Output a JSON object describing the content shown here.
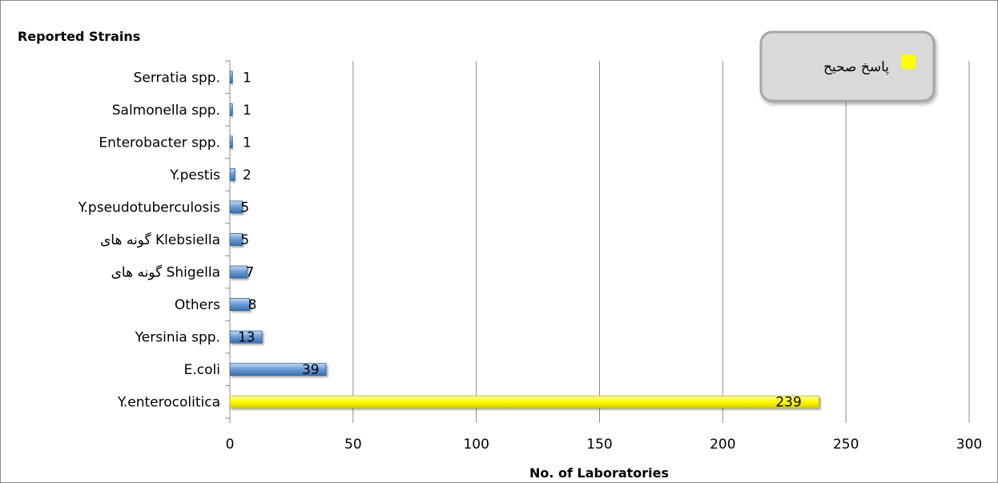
{
  "chart_data": {
    "type": "bar",
    "orientation": "horizontal",
    "title": "Reported Strains",
    "xlabel": "No. of Laboratories",
    "ylabel": "",
    "xlim": [
      0,
      300
    ],
    "xticks": [
      0,
      50,
      100,
      150,
      200,
      250,
      300
    ],
    "grid": "vertical",
    "legend_position": "top-right",
    "categories": [
      "Serratia spp.",
      "Salmonella spp.",
      "Enterobacter spp.",
      "Y.pestis",
      "Y.pseudotuberculosis",
      "گونه های Klebsiella",
      "گونه های Shigella",
      "Others",
      "Yersinia spp.",
      "E.coli",
      "Y.enterocolitica"
    ],
    "values": [
      1,
      1,
      1,
      2,
      5,
      5,
      7,
      8,
      13,
      39,
      239
    ],
    "highlight": [
      false,
      false,
      false,
      false,
      false,
      false,
      false,
      false,
      false,
      false,
      true
    ],
    "legend": [
      {
        "label": "پاسخ صحیح",
        "color": "#ffff00"
      }
    ],
    "colors": {
      "default_bar": "#6f9fd8",
      "highlight_bar": "#ffff00",
      "grid": "#8c8c8c"
    }
  }
}
